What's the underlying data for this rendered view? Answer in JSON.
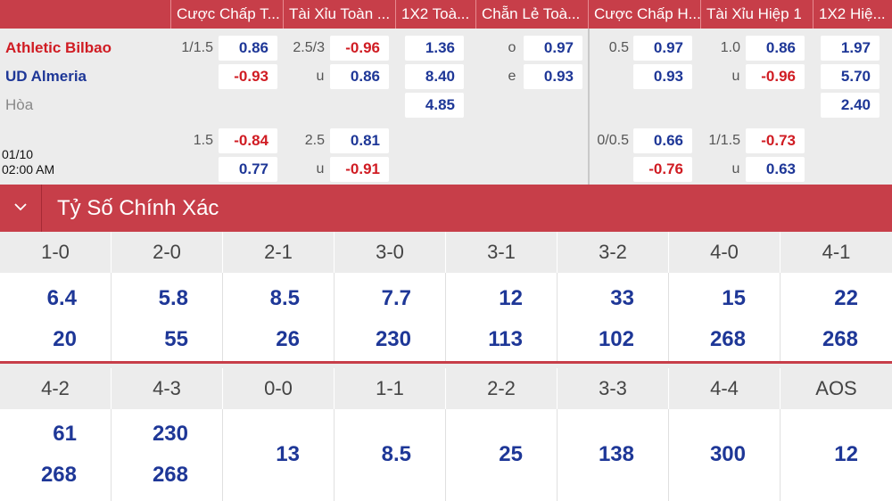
{
  "headers": [
    "Cược Chấp T...",
    "Tài Xỉu Toàn ...",
    "1X2 Toà...",
    "Chẵn Lẻ Toà...",
    "Cược Chấp H...",
    "Tài Xỉu Hiệp 1",
    "1X2 Hiệ..."
  ],
  "teams": {
    "home": "Athletic Bilbao",
    "away": "UD Almeria",
    "draw": "Hòa"
  },
  "match_time": {
    "date": "01/10",
    "time": "02:00 AM"
  },
  "line1": {
    "hcp_ft": {
      "line": "1/1.5",
      "home": "0.86",
      "away": "-0.93"
    },
    "ou_ft": {
      "line": "2.5/3",
      "over": "-0.96",
      "under_label": "u",
      "under": "0.86"
    },
    "x12_ft": {
      "home": "1.36",
      "away": "8.40",
      "draw": "4.85"
    },
    "oe_ft": {
      "odd_label": "o",
      "odd": "0.97",
      "even_label": "e",
      "even": "0.93"
    },
    "hcp_h1": {
      "line": "0.5",
      "home": "0.97",
      "away": "0.93"
    },
    "ou_h1": {
      "line": "1.0",
      "over": "0.86",
      "under_label": "u",
      "under": "-0.96"
    },
    "x12_h1": {
      "home": "1.97",
      "away": "5.70",
      "draw": "2.40"
    }
  },
  "line2": {
    "hcp_ft": {
      "line": "1.5",
      "home": "-0.84",
      "away": "0.77"
    },
    "ou_ft": {
      "line": "2.5",
      "over": "0.81",
      "under_label": "u",
      "under": "-0.91"
    },
    "hcp_h1": {
      "line": "0/0.5",
      "home": "0.66",
      "away": "-0.76"
    },
    "ou_h1": {
      "line": "1/1.5",
      "over": "-0.73",
      "under_label": "u",
      "under": "0.63"
    }
  },
  "correct_score": {
    "title": "Tỷ Số Chính Xác",
    "row1": [
      {
        "score": "1-0",
        "home": "6.4",
        "away": "20"
      },
      {
        "score": "2-0",
        "home": "5.8",
        "away": "55"
      },
      {
        "score": "2-1",
        "home": "8.5",
        "away": "26"
      },
      {
        "score": "3-0",
        "home": "7.7",
        "away": "230"
      },
      {
        "score": "3-1",
        "home": "12",
        "away": "113"
      },
      {
        "score": "3-2",
        "home": "33",
        "away": "102"
      },
      {
        "score": "4-0",
        "home": "15",
        "away": "268"
      },
      {
        "score": "4-1",
        "home": "22",
        "away": "268"
      }
    ],
    "row2": [
      {
        "score": "4-2",
        "home": "61",
        "away": "268"
      },
      {
        "score": "4-3",
        "home": "230",
        "away": "268"
      },
      {
        "score": "0-0",
        "value": "13"
      },
      {
        "score": "1-1",
        "value": "8.5"
      },
      {
        "score": "2-2",
        "value": "25"
      },
      {
        "score": "3-3",
        "value": "138"
      },
      {
        "score": "4-4",
        "value": "300"
      },
      {
        "score": "AOS",
        "value": "12"
      }
    ]
  },
  "colors": {
    "accent": "#c73e49",
    "positive": "#1e3797",
    "negative": "#d01c23",
    "panel": "#ececec"
  }
}
